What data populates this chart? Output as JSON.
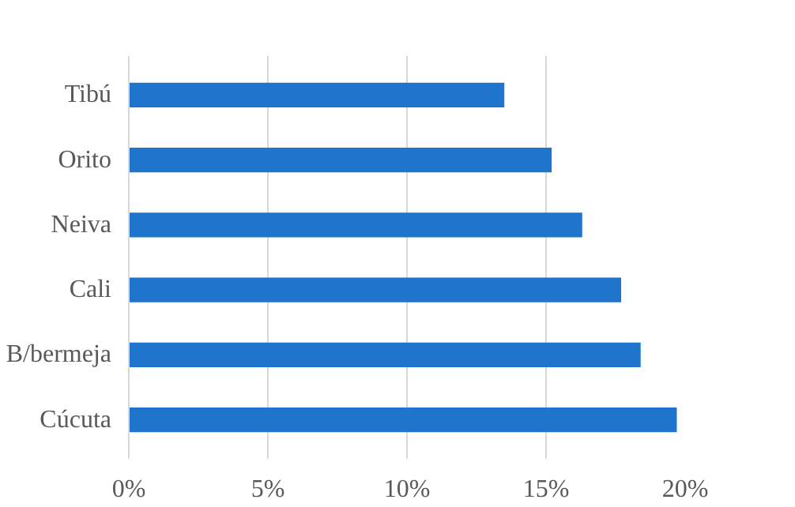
{
  "chart_data": {
    "type": "bar",
    "orientation": "horizontal",
    "categories": [
      "Tibú",
      "Orito",
      "Neiva",
      "Cali",
      "B/bermeja",
      "Cúcuta"
    ],
    "values": [
      13.5,
      15.2,
      16.3,
      17.7,
      18.4,
      19.7
    ],
    "color": "#1f74cc",
    "xlim": [
      0,
      20
    ],
    "xticks": [
      {
        "value": 0,
        "label": "0%"
      },
      {
        "value": 5,
        "label": "5%"
      },
      {
        "value": 10,
        "label": "10%"
      },
      {
        "value": 15,
        "label": "15%"
      },
      {
        "value": 20,
        "label": "20%"
      }
    ],
    "grid": "x"
  }
}
